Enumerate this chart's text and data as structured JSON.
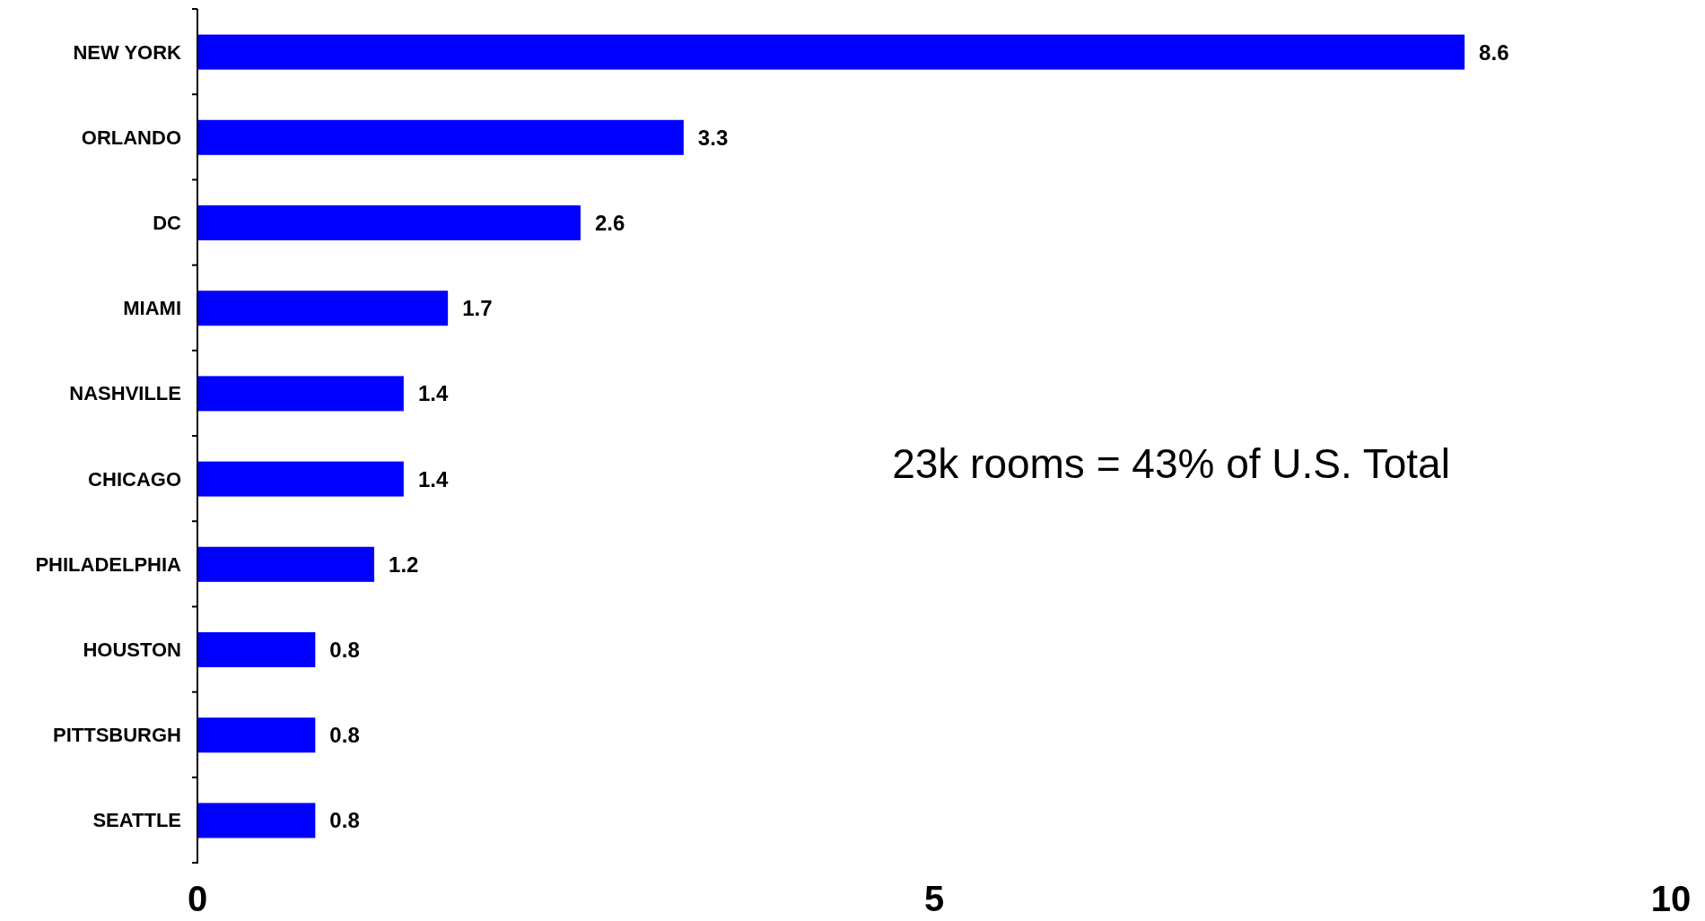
{
  "chart_data": {
    "type": "bar",
    "orientation": "horizontal",
    "categories": [
      "NEW YORK",
      "ORLANDO",
      "DC",
      "MIAMI",
      "NASHVILLE",
      "CHICAGO",
      "PHILADELPHIA",
      "HOUSTON",
      "PITTSBURGH",
      "SEATTLE"
    ],
    "values": [
      8.6,
      3.3,
      2.6,
      1.7,
      1.4,
      1.4,
      1.2,
      0.8,
      0.8,
      0.8
    ],
    "color": "#0000ff",
    "xlim": [
      0,
      10
    ],
    "xticks": [
      0,
      5,
      10
    ],
    "data_labels": true,
    "grid": false,
    "annotations": [
      "23k rooms = 43% of U.S. Total"
    ]
  }
}
